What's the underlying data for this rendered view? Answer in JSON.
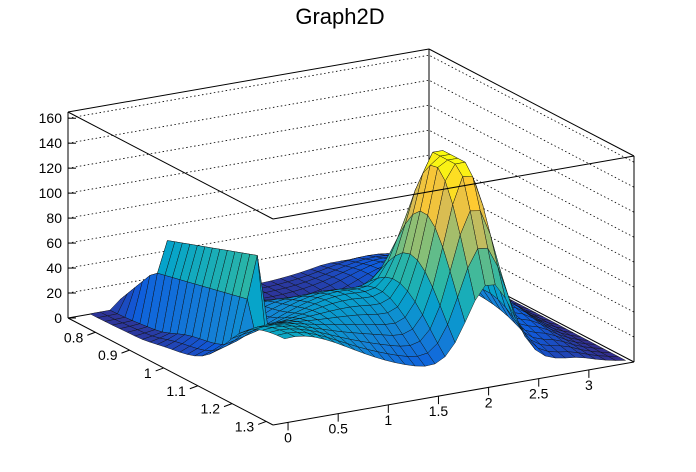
{
  "chart_data": {
    "type": "surface",
    "title": "Graph2D",
    "x_ticks": [
      "0",
      "0.5",
      "1",
      "1.5",
      "2",
      "2.5",
      "3"
    ],
    "y_ticks": [
      "0.8",
      "0.9",
      "1",
      "1.1",
      "1.2",
      "1.3"
    ],
    "z_ticks": [
      "0",
      "20",
      "40",
      "60",
      "80",
      "100",
      "120",
      "140",
      "160"
    ],
    "xlim": [
      -0.15,
      3.45
    ],
    "ylim": [
      0.72,
      1.32
    ],
    "zlim": [
      0,
      165
    ],
    "grid": true,
    "palette": [
      "#352a87",
      "#0f5cdd",
      "#1481d6",
      "#06a4ca",
      "#2eb7a4",
      "#87bf77",
      "#d1bb59",
      "#fec832",
      "#f9fb0e"
    ],
    "surface_samples": [
      {
        "x": 0.0,
        "y": 1.3,
        "z": 92
      },
      {
        "x": 0.3,
        "y": 1.05,
        "z": 60
      },
      {
        "x": 0.4,
        "y": 0.78,
        "z": 0
      },
      {
        "x": 0.5,
        "y": 0.95,
        "z": 75
      },
      {
        "x": 1.2,
        "y": 1.15,
        "z": 65
      },
      {
        "x": 2.0,
        "y": 1.2,
        "z": 163
      },
      {
        "x": 2.5,
        "y": 1.05,
        "z": 60
      },
      {
        "x": 3.2,
        "y": 0.8,
        "z": 0
      }
    ]
  }
}
